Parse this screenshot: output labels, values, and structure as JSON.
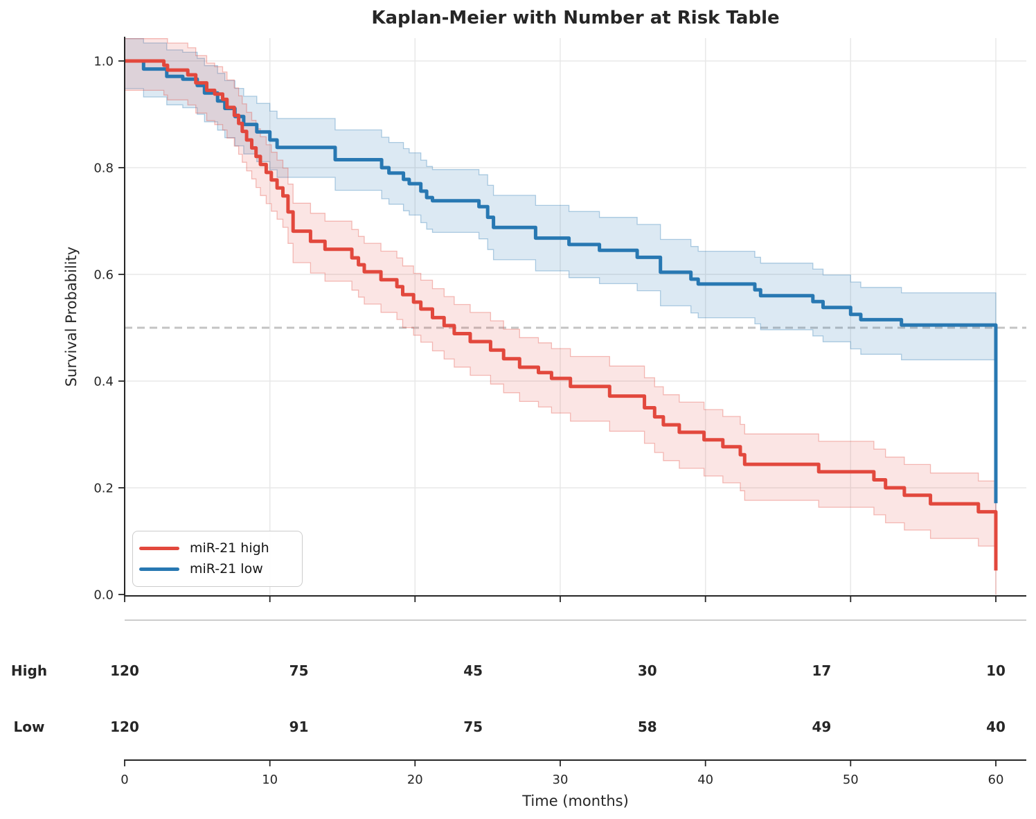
{
  "title": "Kaplan-Meier with Number at Risk Table",
  "axes": {
    "ylabel": "Survival Probability",
    "xlabel": "Time (months)",
    "x_tick_values": [
      0,
      10,
      20,
      30,
      40,
      50,
      60
    ],
    "x_tick_labels": [
      "0",
      "10",
      "20",
      "30",
      "40",
      "50",
      "60"
    ],
    "y_tick_values": [
      1.0,
      0.8,
      0.6,
      0.4,
      0.2,
      0.0
    ],
    "y_tick_labels": [
      "1.0",
      "0.8",
      "0.6",
      "0.4",
      "0.2",
      "0.0"
    ]
  },
  "legend": {
    "items": [
      {
        "label": "miR-21 high",
        "color": "#e2483d"
      },
      {
        "label": "miR-21 low",
        "color": "#2878b2"
      }
    ]
  },
  "risk_table": {
    "times": [
      0,
      12,
      24,
      36,
      48,
      60
    ],
    "rows": [
      {
        "label": "High",
        "color": "#e2483d",
        "counts": [
          "120",
          "75",
          "45",
          "30",
          "17",
          "10"
        ]
      },
      {
        "label": "Low",
        "color": "#2878b2",
        "counts": [
          "120",
          "91",
          "75",
          "58",
          "49",
          "40"
        ]
      }
    ]
  },
  "colors": {
    "grid": "#e8e8e8",
    "spine": "#262626",
    "median_line": "#c4c4c4",
    "separator": "#999999"
  },
  "chart_data": {
    "type": "line",
    "subtype": "kaplan-meier-step",
    "title": "Kaplan-Meier with Number at Risk Table",
    "xlabel": "Time (months)",
    "ylabel": "Survival Probability",
    "xlim": [
      0,
      62
    ],
    "ylim": [
      0,
      1.04
    ],
    "grid": true,
    "legend_position": "lower left",
    "median_reference_line": 0.5,
    "series": [
      {
        "name": "miR-21 high",
        "color": "#e2483d",
        "steps": [
          [
            0,
            1.0
          ],
          [
            2.7,
            0.992
          ],
          [
            2.95,
            0.983
          ],
          [
            4.35,
            0.974
          ],
          [
            4.9,
            0.959
          ],
          [
            5.65,
            0.945
          ],
          [
            6.2,
            0.938
          ],
          [
            6.75,
            0.928
          ],
          [
            7.05,
            0.913
          ],
          [
            7.55,
            0.898
          ],
          [
            7.85,
            0.883
          ],
          [
            8.1,
            0.868
          ],
          [
            8.4,
            0.852
          ],
          [
            8.75,
            0.837
          ],
          [
            9.05,
            0.821
          ],
          [
            9.35,
            0.806
          ],
          [
            9.75,
            0.791
          ],
          [
            10.1,
            0.777
          ],
          [
            10.5,
            0.762
          ],
          [
            10.9,
            0.747
          ],
          [
            11.25,
            0.717
          ],
          [
            11.6,
            0.681
          ],
          [
            12.8,
            0.662
          ],
          [
            13.8,
            0.647
          ],
          [
            15.65,
            0.631
          ],
          [
            16.1,
            0.618
          ],
          [
            16.5,
            0.605
          ],
          [
            17.65,
            0.59
          ],
          [
            18.75,
            0.577
          ],
          [
            19.15,
            0.562
          ],
          [
            19.9,
            0.548
          ],
          [
            20.4,
            0.535
          ],
          [
            21.2,
            0.519
          ],
          [
            22.0,
            0.504
          ],
          [
            22.7,
            0.489
          ],
          [
            23.8,
            0.474
          ],
          [
            25.2,
            0.458
          ],
          [
            26.1,
            0.442
          ],
          [
            27.2,
            0.426
          ],
          [
            28.5,
            0.416
          ],
          [
            29.4,
            0.405
          ],
          [
            30.7,
            0.39
          ],
          [
            33.4,
            0.372
          ],
          [
            35.8,
            0.35
          ],
          [
            36.5,
            0.333
          ],
          [
            37.1,
            0.318
          ],
          [
            38.2,
            0.304
          ],
          [
            39.9,
            0.29
          ],
          [
            41.2,
            0.277
          ],
          [
            42.4,
            0.262
          ],
          [
            42.7,
            0.244
          ],
          [
            47.8,
            0.23
          ],
          [
            51.6,
            0.215
          ],
          [
            52.4,
            0.2
          ],
          [
            53.7,
            0.186
          ],
          [
            55.5,
            0.17
          ],
          [
            58.8,
            0.155
          ],
          [
            60,
            0.045
          ]
        ],
        "ci_upper_offset": [
          [
            0,
            0.05
          ],
          [
            10,
            0.052
          ],
          [
            30,
            0.056
          ],
          [
            60,
            0.058
          ]
        ],
        "ci_lower_offset": [
          [
            0,
            0.055
          ],
          [
            20,
            0.062
          ],
          [
            40,
            0.068
          ],
          [
            60,
            0.064
          ]
        ]
      },
      {
        "name": "miR-21 low",
        "color": "#2878b2",
        "steps": [
          [
            0,
            1.0
          ],
          [
            1.3,
            0.985
          ],
          [
            2.9,
            0.971
          ],
          [
            4.0,
            0.966
          ],
          [
            5.0,
            0.954
          ],
          [
            5.5,
            0.94
          ],
          [
            6.4,
            0.925
          ],
          [
            6.9,
            0.911
          ],
          [
            7.6,
            0.896
          ],
          [
            8.2,
            0.881
          ],
          [
            9.1,
            0.867
          ],
          [
            10.0,
            0.852
          ],
          [
            10.5,
            0.838
          ],
          [
            14.5,
            0.815
          ],
          [
            17.7,
            0.8
          ],
          [
            18.2,
            0.79
          ],
          [
            19.2,
            0.778
          ],
          [
            19.6,
            0.77
          ],
          [
            20.4,
            0.756
          ],
          [
            20.8,
            0.744
          ],
          [
            21.2,
            0.738
          ],
          [
            24.4,
            0.727
          ],
          [
            25.0,
            0.707
          ],
          [
            25.4,
            0.688
          ],
          [
            28.3,
            0.668
          ],
          [
            30.6,
            0.656
          ],
          [
            32.7,
            0.645
          ],
          [
            35.3,
            0.632
          ],
          [
            36.9,
            0.604
          ],
          [
            39.0,
            0.591
          ],
          [
            39.5,
            0.582
          ],
          [
            43.4,
            0.571
          ],
          [
            43.8,
            0.56
          ],
          [
            47.4,
            0.549
          ],
          [
            48.1,
            0.538
          ],
          [
            50.0,
            0.525
          ],
          [
            50.7,
            0.515
          ],
          [
            53.5,
            0.505
          ],
          [
            60,
            0.171
          ]
        ],
        "ci_upper_offset": [
          [
            0,
            0.048
          ],
          [
            10,
            0.054
          ],
          [
            30,
            0.062
          ],
          [
            60,
            0.06
          ]
        ],
        "ci_lower_offset": [
          [
            0,
            0.052
          ],
          [
            10,
            0.056
          ],
          [
            30,
            0.062
          ],
          [
            60,
            0.066
          ]
        ]
      }
    ],
    "number_at_risk": {
      "times": [
        0,
        12,
        24,
        36,
        48,
        60
      ],
      "miR-21 high": [
        120,
        75,
        45,
        30,
        17,
        10
      ],
      "miR-21 low": [
        120,
        91,
        75,
        58,
        49,
        40
      ]
    }
  }
}
